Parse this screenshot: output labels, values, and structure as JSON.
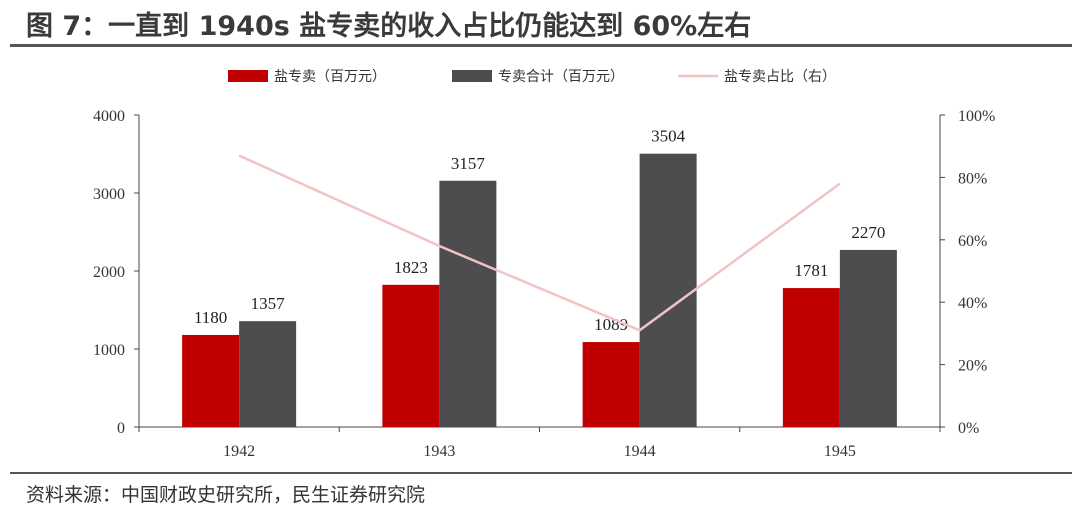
{
  "header": {
    "title": "图 7：一直到 1940s 盐专卖的收入占比仍能达到 60%左右"
  },
  "footer": {
    "source": "资料来源：中国财政史研究所，民生证券研究院"
  },
  "colors": {
    "salt": "#c00000",
    "total": "#4d4d4f",
    "ratio": "#f0c4c4"
  },
  "chart_data": {
    "type": "bar",
    "categories": [
      "1942",
      "1943",
      "1944",
      "1945"
    ],
    "series": [
      {
        "name": "盐专卖（百万元）",
        "type": "bar",
        "axis": "left",
        "values": [
          1180,
          1823,
          1089,
          1781
        ]
      },
      {
        "name": "专卖合计（百万元）",
        "type": "bar",
        "axis": "left",
        "values": [
          1357,
          3157,
          3504,
          2270
        ]
      },
      {
        "name": "盐专卖占比（右）",
        "type": "line",
        "axis": "right",
        "values": [
          87,
          58,
          31,
          78
        ]
      }
    ],
    "y_left": {
      "lim": [
        0,
        4000
      ],
      "ticks": [
        "0",
        "1000",
        "2000",
        "3000",
        "4000"
      ]
    },
    "y_right": {
      "lim": [
        0,
        100
      ],
      "ticks": [
        "0%",
        "20%",
        "40%",
        "60%",
        "80%",
        "100%"
      ]
    },
    "legend": "top-center",
    "grid": false
  }
}
